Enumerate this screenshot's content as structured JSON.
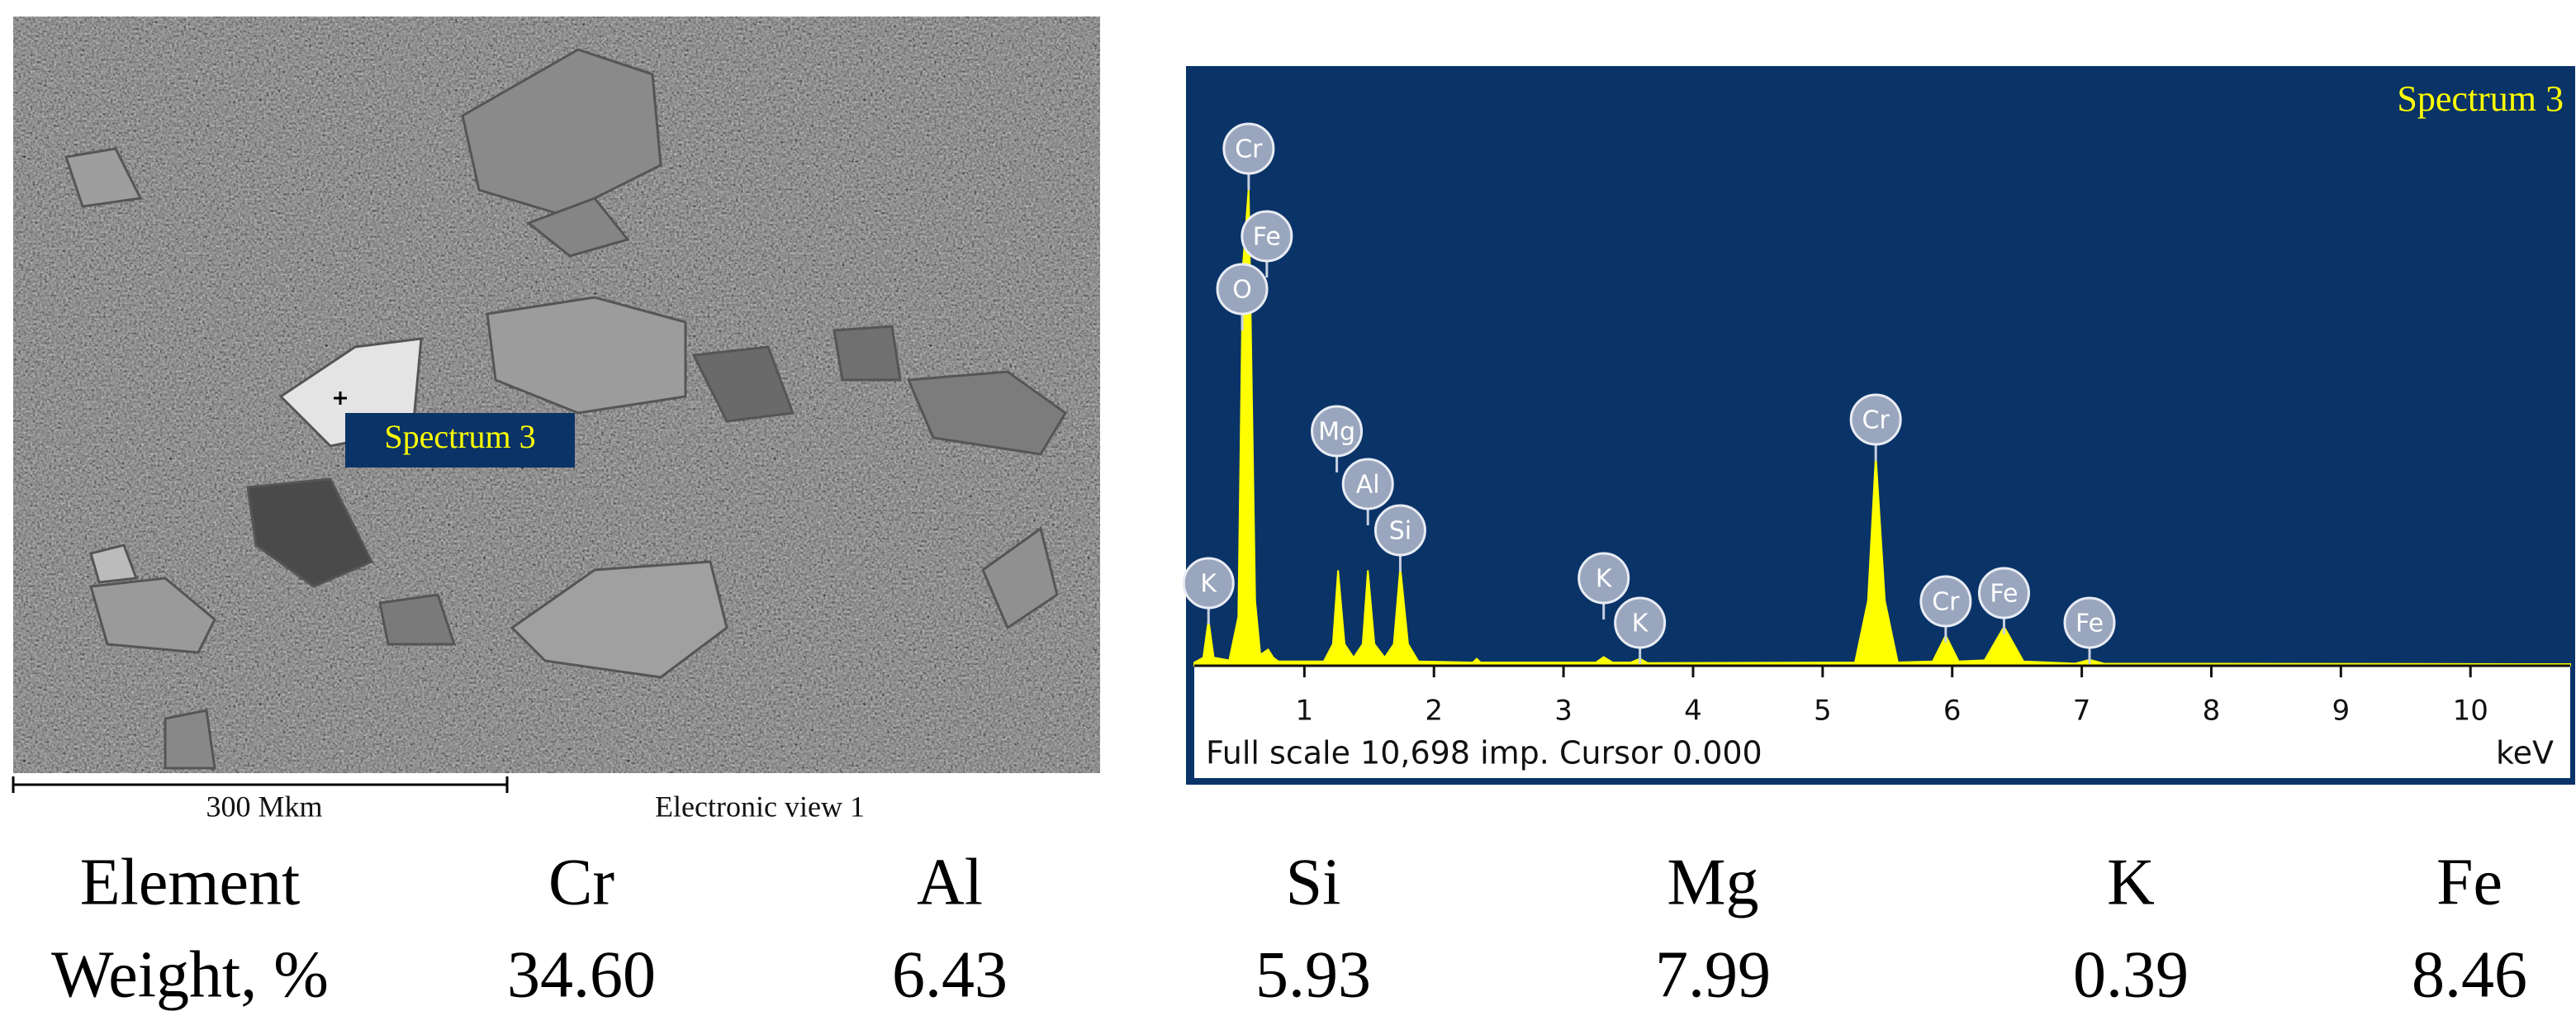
{
  "sem_image": {
    "marker_label": "Spectrum 3",
    "scale_bar": "300 Mkm",
    "caption": "Electronic view 1"
  },
  "chart_data": {
    "type": "area",
    "title": "Spectrum 3",
    "x": [
      0.15,
      0.22,
      0.26,
      0.3,
      0.42,
      0.49,
      0.525,
      0.57,
      0.62,
      0.66,
      0.72,
      0.76,
      0.8,
      1.15,
      1.22,
      1.26,
      1.31,
      1.38,
      1.45,
      1.49,
      1.54,
      1.62,
      1.69,
      1.74,
      1.8,
      1.88,
      2.3,
      2.33,
      2.36,
      3.25,
      3.31,
      3.38,
      3.52,
      3.59,
      3.65,
      5.25,
      5.35,
      5.41,
      5.48,
      5.58,
      5.85,
      5.95,
      6.05,
      6.25,
      6.4,
      6.55,
      6.95,
      7.06,
      7.17,
      10.77
    ],
    "values": [
      60,
      150,
      850,
      150,
      100,
      900,
      7360,
      8820,
      1200,
      200,
      300,
      150,
      80,
      80,
      400,
      1760,
      400,
      150,
      400,
      1760,
      400,
      150,
      400,
      1820,
      400,
      80,
      60,
      130,
      60,
      60,
      160,
      60,
      60,
      130,
      50,
      60,
      1200,
      3880,
      1200,
      60,
      80,
      560,
      80,
      100,
      720,
      80,
      40,
      110,
      40,
      30
    ],
    "color": "#ffff00",
    "background": "#0a3368",
    "xlim": [
      0.15,
      10.77
    ],
    "ylim": [
      0,
      11000
    ],
    "xticks": [
      1,
      2,
      3,
      4,
      5,
      6,
      7,
      8,
      9,
      10
    ],
    "x_label": "keV",
    "footer": "Full scale 10,698 imp. Cursor 0.000",
    "peak_labels": [
      "Cr",
      "Fe",
      "O",
      "Mg",
      "Al",
      "Si",
      "K",
      "K",
      "K",
      "Cr",
      "Cr",
      "Fe",
      "Fe"
    ],
    "peak_energies": [
      0.57,
      0.71,
      0.52,
      1.25,
      1.49,
      1.74,
      0.26,
      3.31,
      3.59,
      5.41,
      5.95,
      6.4,
      7.06
    ]
  },
  "table": {
    "header": [
      "Element",
      "Cr",
      "Al",
      "Si",
      "Mg",
      "K",
      "Fe"
    ],
    "rows": [
      [
        "Weight, %",
        "34.60",
        "6.43",
        "5.93",
        "7.99",
        "0.39",
        "8.46"
      ]
    ]
  }
}
